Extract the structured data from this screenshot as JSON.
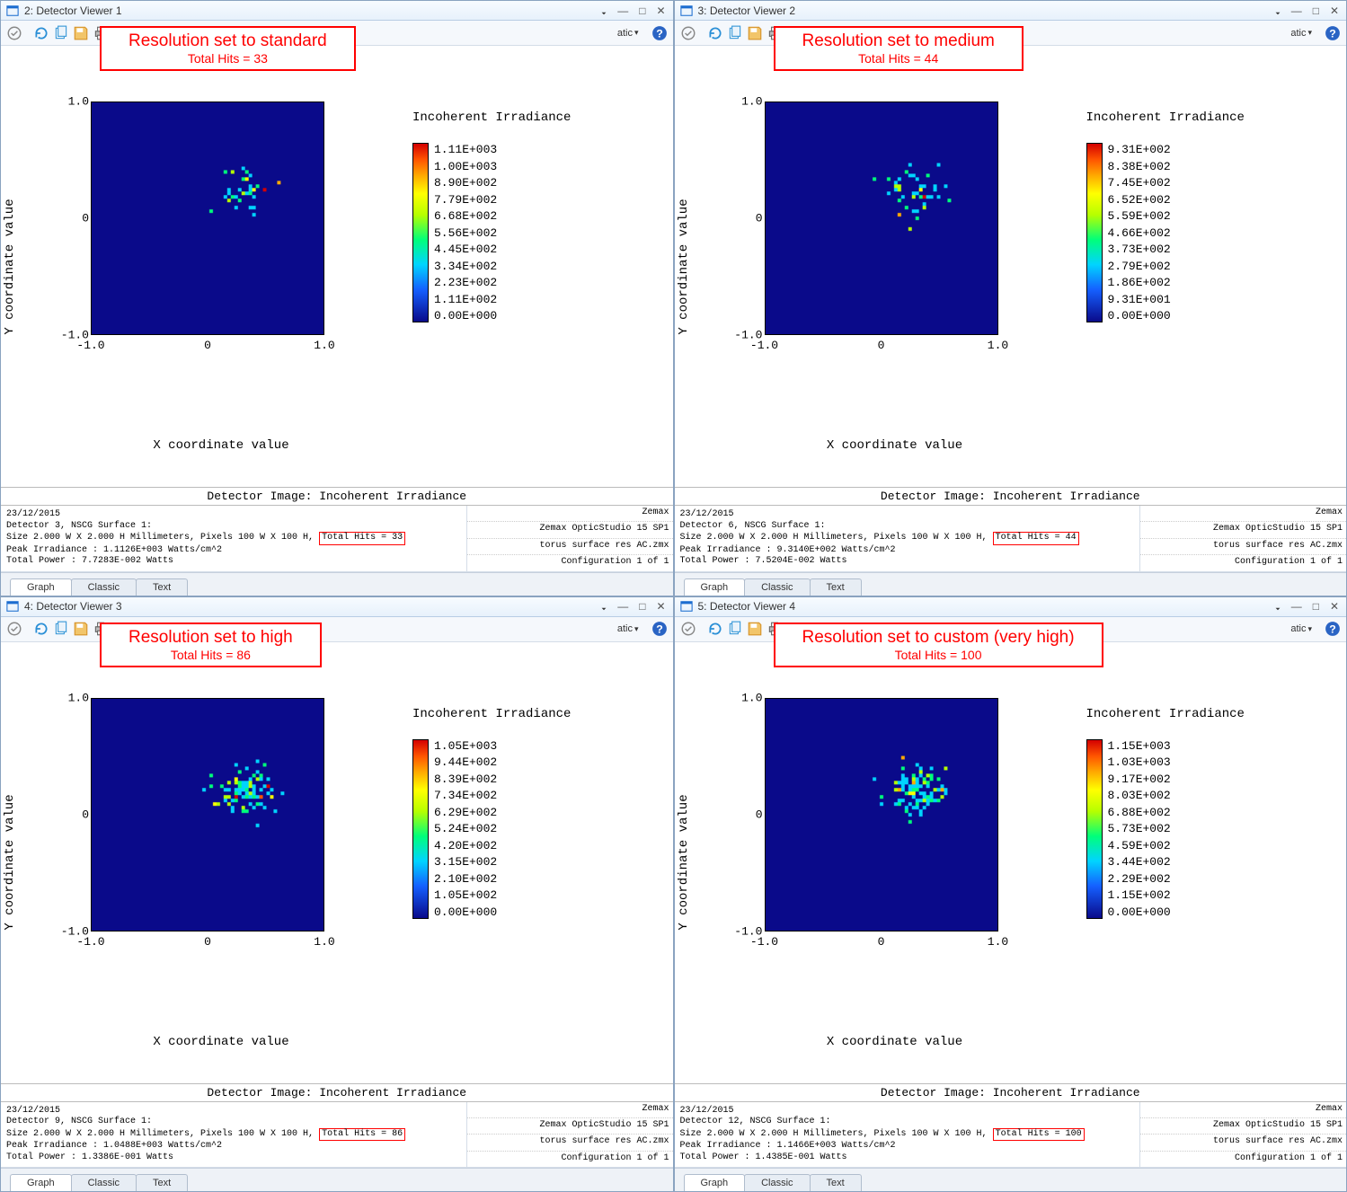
{
  "tick_labels_x": [
    "-1.0",
    "0",
    "1.0"
  ],
  "tick_labels_y": [
    "-1.0",
    "0",
    "1.0"
  ],
  "tabs": [
    "Graph",
    "Classic",
    "Text"
  ],
  "panels": [
    {
      "win_num": "2",
      "title": "Detector Viewer 1",
      "callout_l1": "Resolution set to standard",
      "callout_l2": "Total Hits = 33",
      "legend_title": "Incoherent Irradiance",
      "cb_values": [
        "0.00E+000",
        "1.11E+002",
        "2.23E+002",
        "3.34E+002",
        "4.45E+002",
        "5.56E+002",
        "6.68E+002",
        "7.79E+002",
        "8.90E+002",
        "1.00E+003",
        "1.11E+003"
      ],
      "y_label": "Y coordinate value",
      "x_label": "X coordinate value",
      "det_title": "Detector Image: Incoherent Irradiance",
      "info_date": "23/12/2015",
      "info_det": "Detector 3, NSCG Surface 1:",
      "info_size_pre": "Size 2.000 W X 2.000 H Millimeters, Pixels 100 W X 100 H,",
      "info_hits": "Total Hits = 33",
      "info_peak": "Peak Irradiance : 1.1126E+003 Watts/cm^2",
      "info_power": "Total Power    : 7.7283E-002 Watts",
      "right1": "Zemax",
      "right2": "Zemax OpticStudio 15 SP1",
      "right3": "torus surface res AC.zmx",
      "right4": "Configuration 1 of 1",
      "n_points": 33,
      "seed": 11
    },
    {
      "win_num": "3",
      "title": "Detector Viewer 2",
      "callout_l1": "Resolution set to medium",
      "callout_l2": "Total Hits = 44",
      "legend_title": "Incoherent Irradiance",
      "cb_values": [
        "0.00E+000",
        "9.31E+001",
        "1.86E+002",
        "2.79E+002",
        "3.73E+002",
        "4.66E+002",
        "5.59E+002",
        "6.52E+002",
        "7.45E+002",
        "8.38E+002",
        "9.31E+002"
      ],
      "y_label": "Y coordinate value",
      "x_label": "X coordinate value",
      "det_title": "Detector Image: Incoherent Irradiance",
      "info_date": "23/12/2015",
      "info_det": "Detector 6, NSCG Surface 1:",
      "info_size_pre": "Size 2.000 W X 2.000 H Millimeters, Pixels 100 W X 100 H,",
      "info_hits": "Total Hits = 44",
      "info_peak": "Peak Irradiance : 9.3140E+002 Watts/cm^2",
      "info_power": "Total Power    : 7.5204E-002 Watts",
      "right1": "Zemax",
      "right2": "Zemax OpticStudio 15 SP1",
      "right3": "torus surface res AC.zmx",
      "right4": "Configuration 1 of 1",
      "n_points": 44,
      "seed": 22
    },
    {
      "win_num": "4",
      "title": "Detector Viewer 3",
      "callout_l1": "Resolution set to high",
      "callout_l2": "Total Hits = 86",
      "legend_title": "Incoherent Irradiance",
      "cb_values": [
        "0.00E+000",
        "1.05E+002",
        "2.10E+002",
        "3.15E+002",
        "4.20E+002",
        "5.24E+002",
        "6.29E+002",
        "7.34E+002",
        "8.39E+002",
        "9.44E+002",
        "1.05E+003"
      ],
      "y_label": "Y coordinate value",
      "x_label": "X coordinate value",
      "det_title": "Detector Image: Incoherent Irradiance",
      "info_date": "23/12/2015",
      "info_det": "Detector 9, NSCG Surface 1:",
      "info_size_pre": "Size 2.000 W X 2.000 H Millimeters, Pixels 100 W X 100 H,",
      "info_hits": "Total Hits = 86",
      "info_peak": "Peak Irradiance : 1.0488E+003 Watts/cm^2",
      "info_power": "Total Power    : 1.3386E-001 Watts",
      "right1": "Zemax",
      "right2": "Zemax OpticStudio 15 SP1",
      "right3": "torus surface res AC.zmx",
      "right4": "Configuration 1 of 1",
      "n_points": 86,
      "seed": 33
    },
    {
      "win_num": "5",
      "title": "Detector Viewer 4",
      "callout_l1": "Resolution set to custom (very high)",
      "callout_l2": "Total Hits = 100",
      "legend_title": "Incoherent Irradiance",
      "cb_values": [
        "0.00E+000",
        "1.15E+002",
        "2.29E+002",
        "3.44E+002",
        "4.59E+002",
        "5.73E+002",
        "6.88E+002",
        "8.03E+002",
        "9.17E+002",
        "1.03E+003",
        "1.15E+003"
      ],
      "y_label": "Y coordinate value",
      "x_label": "X coordinate value",
      "det_title": "Detector Image: Incoherent Irradiance",
      "info_date": "23/12/2015",
      "info_det": "Detector 12, NSCG Surface 1:",
      "info_size_pre": "Size 2.000 W X 2.000 H Millimeters, Pixels 100 W X 100 H,",
      "info_hits": "Total Hits = 100",
      "info_peak": "Peak Irradiance : 1.1466E+003 Watts/cm^2",
      "info_power": "Total Power    : 1.4385E-001 Watts",
      "right1": "Zemax",
      "right2": "Zemax OpticStudio 15 SP1",
      "right3": "torus surface res AC.zmx",
      "right4": "Configuration 1 of 1",
      "n_points": 100,
      "seed": 44
    }
  ],
  "toolbar": {
    "dropdown_label": "atic",
    "dropdown_full": "Automatic"
  },
  "chart_style": {
    "plot_bg_color": "#0a0a8a",
    "point_colors": [
      "#00d4ff",
      "#00ff7a",
      "#b6ff00",
      "#ffff00",
      "#ffaa00",
      "#ff5500",
      "#d40000"
    ],
    "cell_size": 4,
    "center_bias_x": 0.15,
    "center_bias_y": 0.12,
    "spread_x": 0.24,
    "spread_y": 0.18
  },
  "icons": {
    "app": "#1c6dd0",
    "refresh": "#2a8fd6",
    "copy": "#3a99d8",
    "save": "#d6932a",
    "print": "#666",
    "help": "#2a64c4"
  }
}
